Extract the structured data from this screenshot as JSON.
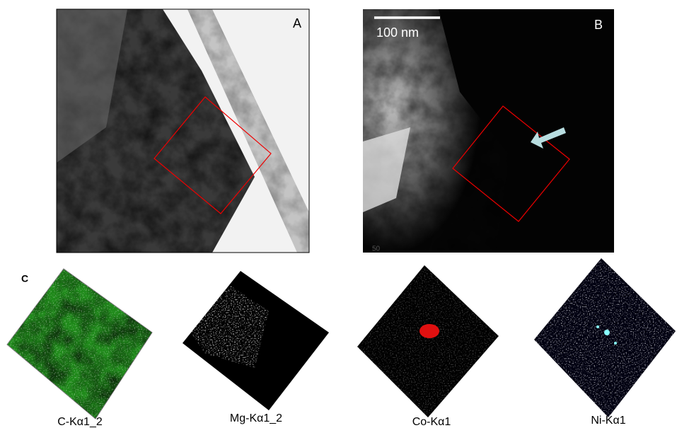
{
  "panels": {
    "a": {
      "label": "A"
    },
    "b": {
      "label": "B",
      "scale_bar": "100 nm",
      "corner_text": "50"
    }
  },
  "maps": {
    "label": "C",
    "items": [
      {
        "label": "C-Kα1_2"
      },
      {
        "label": "Mg-Kα1_2"
      },
      {
        "label": "Co-Kα1"
      },
      {
        "label": "Ni-Kα1"
      }
    ]
  }
}
